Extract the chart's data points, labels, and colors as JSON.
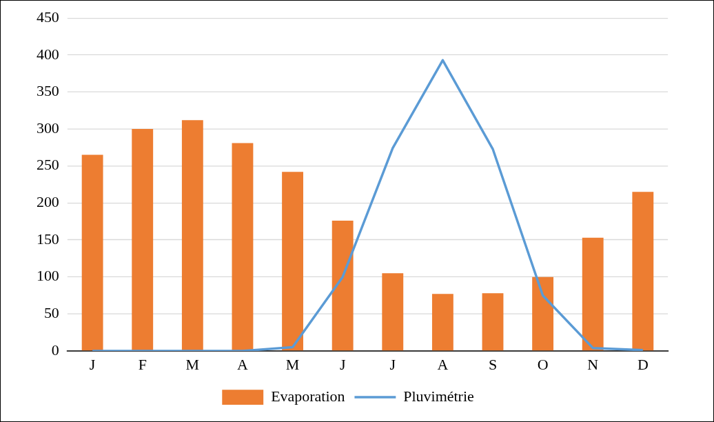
{
  "chart_data": {
    "type": "bar",
    "categories": [
      "J",
      "F",
      "M",
      "A",
      "M",
      "J",
      "J",
      "A",
      "S",
      "O",
      "N",
      "D"
    ],
    "series": [
      {
        "name": "Evaporation",
        "color": "#ed7d31",
        "values": [
          265,
          300,
          312,
          281,
          242,
          176,
          105,
          77,
          78,
          100,
          153,
          215
        ]
      },
      {
        "name": "Pluvimétrie",
        "type": "line",
        "color": "#5b9bd5",
        "values": [
          0,
          0,
          0,
          0,
          5,
          100,
          274,
          393,
          273,
          75,
          4,
          1
        ]
      }
    ],
    "ylim": [
      0,
      450
    ],
    "yticks": [
      0,
      50,
      100,
      150,
      200,
      250,
      300,
      350,
      400,
      450
    ],
    "grid": "y",
    "legend": "bottom",
    "marker": "none",
    "line_style": "solid"
  }
}
